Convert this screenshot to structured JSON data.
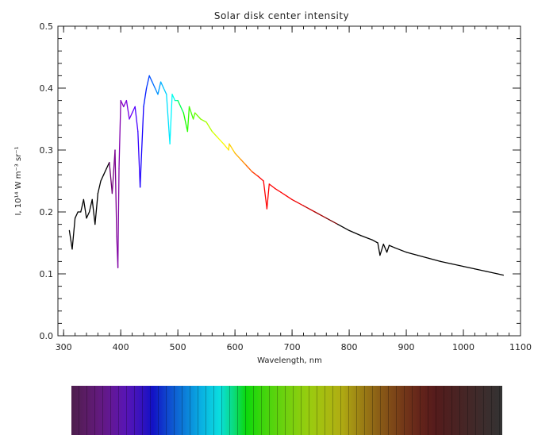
{
  "chart_data": {
    "type": "line",
    "title": "Solar disk center intensity",
    "xlabel": "Wavelength, nm",
    "ylabel": "I, 10¹⁴ W m⁻³ sr⁻¹",
    "xlim": [
      290,
      1100
    ],
    "ylim": [
      0.0,
      0.5
    ],
    "x_ticks": [
      "300",
      "400",
      "500",
      "600",
      "700",
      "800",
      "900",
      "1000",
      "1100"
    ],
    "y_ticks": [
      "0.0",
      "0.1",
      "0.2",
      "0.3",
      "0.4",
      "0.5"
    ],
    "grid": false,
    "series": [
      {
        "x": [
          310,
          315,
          320,
          325,
          330,
          335,
          340,
          345,
          350,
          355,
          360,
          365,
          370,
          375,
          380,
          385,
          390,
          393,
          395,
          397,
          400,
          405,
          410,
          415,
          420,
          425,
          430,
          434,
          440,
          445,
          450,
          455,
          460,
          465,
          470,
          475,
          480,
          486,
          490,
          495,
          500,
          510,
          517,
          520,
          527,
          530,
          540,
          550,
          560,
          570,
          580,
          589,
          590,
          600,
          610,
          620,
          630,
          640,
          650,
          656,
          660,
          670,
          680,
          690,
          700,
          720,
          740,
          760,
          780,
          800,
          820,
          840,
          850,
          854,
          860,
          866,
          870,
          880,
          900,
          920,
          940,
          960,
          980,
          1000,
          1020,
          1040,
          1060,
          1070
        ],
        "y": [
          0.17,
          0.14,
          0.19,
          0.2,
          0.2,
          0.22,
          0.19,
          0.2,
          0.22,
          0.18,
          0.23,
          0.25,
          0.26,
          0.27,
          0.28,
          0.23,
          0.3,
          0.16,
          0.11,
          0.27,
          0.38,
          0.37,
          0.38,
          0.35,
          0.36,
          0.37,
          0.33,
          0.24,
          0.37,
          0.4,
          0.42,
          0.41,
          0.4,
          0.39,
          0.41,
          0.4,
          0.39,
          0.31,
          0.39,
          0.38,
          0.38,
          0.36,
          0.33,
          0.37,
          0.35,
          0.36,
          0.35,
          0.345,
          0.33,
          0.32,
          0.31,
          0.3,
          0.31,
          0.295,
          0.285,
          0.275,
          0.265,
          0.258,
          0.25,
          0.205,
          0.245,
          0.238,
          0.232,
          0.226,
          0.22,
          0.21,
          0.2,
          0.19,
          0.18,
          0.17,
          0.162,
          0.155,
          0.15,
          0.13,
          0.148,
          0.135,
          0.146,
          0.142,
          0.135,
          0.13,
          0.125,
          0.12,
          0.116,
          0.112,
          0.108,
          0.104,
          0.1,
          0.098
        ]
      }
    ]
  }
}
